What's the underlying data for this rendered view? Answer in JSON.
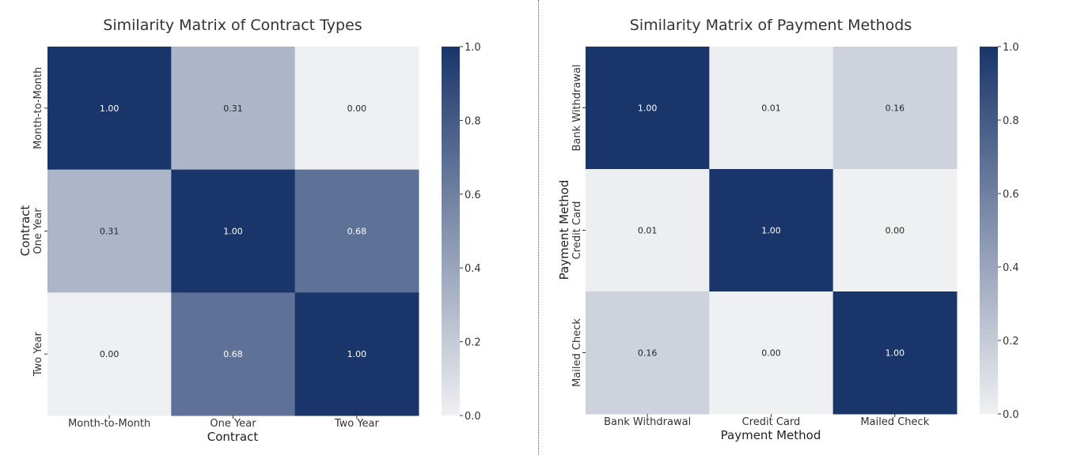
{
  "chart_data": [
    {
      "type": "heatmap",
      "title": "Similarity Matrix of Contract Types",
      "xlabel": "Contract",
      "ylabel": "Contract",
      "x_categories": [
        "Month-to-Month",
        "One Year",
        "Two Year"
      ],
      "y_categories": [
        "Month-to-Month",
        "One Year",
        "Two Year"
      ],
      "values": [
        [
          1.0,
          0.31,
          0.0
        ],
        [
          0.31,
          1.0,
          0.68
        ],
        [
          0.0,
          0.68,
          1.0
        ]
      ],
      "value_labels": [
        [
          "1.00",
          "0.31",
          "0.00"
        ],
        [
          "0.31",
          "1.00",
          "0.68"
        ],
        [
          "0.00",
          "0.68",
          "1.00"
        ]
      ],
      "colorbar": {
        "range": [
          0.0,
          1.0
        ],
        "ticks": [
          "0.0",
          "0.2",
          "0.4",
          "0.6",
          "0.8",
          "1.0"
        ]
      }
    },
    {
      "type": "heatmap",
      "title": "Similarity Matrix of Payment Methods",
      "xlabel": "Payment Method",
      "ylabel": "Payment Method",
      "x_categories": [
        "Bank Withdrawal",
        "Credit Card",
        "Mailed Check"
      ],
      "y_categories": [
        "Bank Withdrawal",
        "Credit Card",
        "Mailed Check"
      ],
      "values": [
        [
          1.0,
          0.01,
          0.16
        ],
        [
          0.01,
          1.0,
          0.0
        ],
        [
          0.16,
          0.0,
          1.0
        ]
      ],
      "value_labels": [
        [
          "1.00",
          "0.01",
          "0.16"
        ],
        [
          "0.01",
          "1.00",
          "0.00"
        ],
        [
          "0.16",
          "0.00",
          "1.00"
        ]
      ],
      "colorbar": {
        "range": [
          0.0,
          1.0
        ],
        "ticks": [
          "0.0",
          "0.2",
          "0.4",
          "0.6",
          "0.8",
          "1.0"
        ]
      }
    }
  ],
  "colors": {
    "low": "#eff0f2",
    "high": "#1a356a",
    "light_text": "#ffffff",
    "dark_text": "#262626",
    "text": "#333333"
  }
}
